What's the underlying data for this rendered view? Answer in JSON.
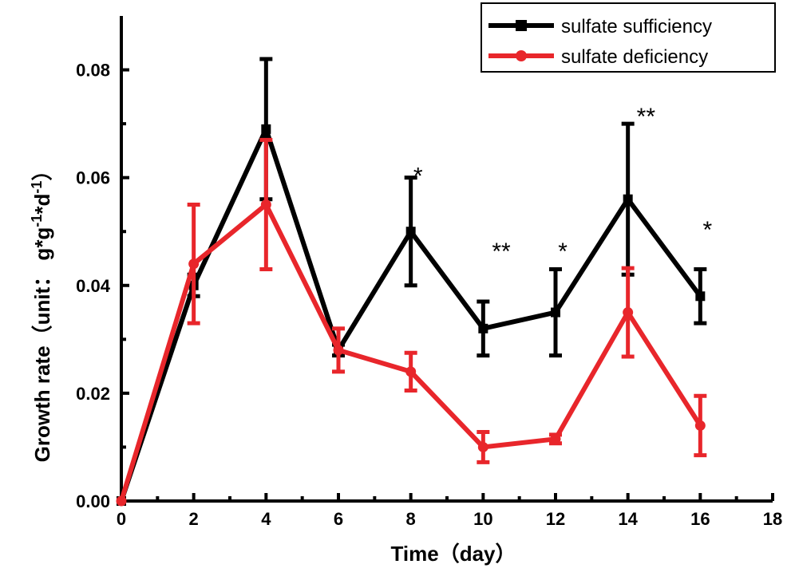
{
  "chart_data": {
    "type": "line",
    "title": "",
    "xlabel": "Time（day）",
    "ylabel_main": "Growth rate",
    "ylabel_unit_prefix": "（unit： g*g",
    "ylabel_unit_sup1": "-1",
    "ylabel_unit_mid": "*d",
    "ylabel_unit_sup2": "-1",
    "ylabel_unit_suffix": "）",
    "xlim": [
      0,
      18
    ],
    "ylim": [
      0,
      0.09
    ],
    "xticks": [
      0,
      2,
      4,
      6,
      8,
      10,
      12,
      14,
      16,
      18
    ],
    "xtick_labels": [
      "0",
      "2",
      "4",
      "6",
      "8",
      "10",
      "12",
      "14",
      "16",
      "18"
    ],
    "yticks": [
      0,
      0.02,
      0.04,
      0.06,
      0.08
    ],
    "ytick_labels": [
      "0.00",
      "0.02",
      "0.04",
      "0.06",
      "0.08"
    ],
    "grid": false,
    "legend_position": "top-right",
    "series": [
      {
        "name": "sulfate sufficiency",
        "color": "#000000",
        "marker": "square",
        "x": [
          0,
          2,
          4,
          6,
          8,
          10,
          12,
          14,
          16
        ],
        "y": [
          0.0,
          0.04,
          0.069,
          0.028,
          0.05,
          0.032,
          0.035,
          0.056,
          0.038
        ],
        "err": [
          0,
          0.002,
          0.013,
          0.001,
          0.01,
          0.005,
          0.008,
          0.014,
          0.005
        ]
      },
      {
        "name": "sulfate deficiency",
        "color": "#e8262b",
        "marker": "circle",
        "x": [
          0,
          2,
          4,
          6,
          8,
          10,
          12,
          14,
          16
        ],
        "y": [
          0.0,
          0.044,
          0.055,
          0.028,
          0.024,
          0.01,
          0.0115,
          0.035,
          0.014
        ],
        "err": [
          0,
          0.011,
          0.012,
          0.004,
          0.0035,
          0.0028,
          0.0008,
          0.0082,
          0.0055
        ]
      }
    ],
    "annotations": [
      {
        "x": 8.2,
        "y": 0.0615,
        "text": "*"
      },
      {
        "x": 10.5,
        "y": 0.0475,
        "text": "**"
      },
      {
        "x": 12.2,
        "y": 0.0475,
        "text": "*"
      },
      {
        "x": 14.5,
        "y": 0.0725,
        "text": "**"
      },
      {
        "x": 16.2,
        "y": 0.0515,
        "text": "*"
      }
    ]
  }
}
